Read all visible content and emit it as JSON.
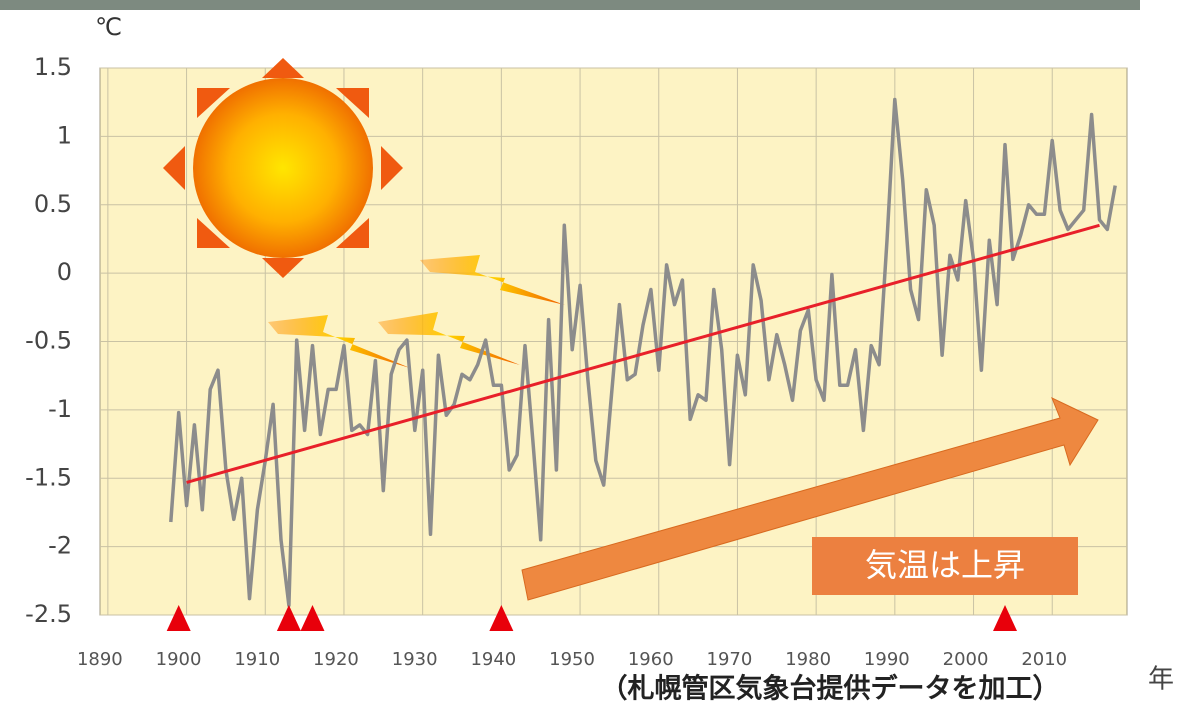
{
  "chart_data": {
    "type": "line",
    "unit": "℃",
    "x_label": "年",
    "source": "（札幌管区気象台提供データを加工）",
    "annotation": "気温は上昇",
    "xlim": [
      1889,
      2019.5
    ],
    "xticks": [
      1890,
      1900,
      1910,
      1920,
      1930,
      1940,
      1950,
      1960,
      1970,
      1980,
      1990,
      2000,
      2010
    ],
    "ylim": [
      -2.5,
      1.5
    ],
    "yticks": [
      1.5,
      1,
      0.5,
      0,
      -0.5,
      -1,
      -1.5,
      -2,
      -2.5
    ],
    "grid": true,
    "series": [
      {
        "color": "#8c8c8c",
        "x": [
          1898,
          1899,
          1900,
          1901,
          1902,
          1903,
          1904,
          1905,
          1906,
          1907,
          1908,
          1909,
          1910,
          1911,
          1912,
          1913,
          1914,
          1915,
          1916,
          1917,
          1918,
          1919,
          1920,
          1921,
          1922,
          1923,
          1924,
          1925,
          1926,
          1927,
          1928,
          1929,
          1930,
          1931,
          1932,
          1933,
          1934,
          1935,
          1936,
          1937,
          1938,
          1939,
          1940,
          1941,
          1942,
          1943,
          1944,
          1945,
          1946,
          1947,
          1948,
          1949,
          1950,
          1951,
          1952,
          1953,
          1954,
          1955,
          1956,
          1957,
          1958,
          1959,
          1960,
          1961,
          1962,
          1963,
          1964,
          1965,
          1966,
          1967,
          1968,
          1969,
          1970,
          1971,
          1972,
          1973,
          1974,
          1975,
          1976,
          1977,
          1978,
          1979,
          1980,
          1981,
          1982,
          1983,
          1984,
          1985,
          1986,
          1987,
          1988,
          1989,
          1990,
          1991,
          1992,
          1993,
          1994,
          1995,
          1996,
          1997,
          1998,
          1999,
          2000,
          2001,
          2002,
          2003,
          2004,
          2005,
          2006,
          2007,
          2008,
          2009,
          2010,
          2011,
          2012,
          2013,
          2014,
          2015,
          2016,
          2017,
          2018
        ],
        "values": [
          -1.82,
          -1.02,
          -1.7,
          -1.11,
          -1.73,
          -0.85,
          -0.71,
          -1.44,
          -1.8,
          -1.5,
          -2.38,
          -1.73,
          -1.37,
          -0.96,
          -1.95,
          -2.43,
          -0.49,
          -1.15,
          -0.53,
          -1.18,
          -0.85,
          -0.85,
          -0.53,
          -1.15,
          -1.11,
          -1.18,
          -0.64,
          -1.59,
          -0.74,
          -0.56,
          -0.49,
          -1.15,
          -0.71,
          -1.91,
          -0.6,
          -1.04,
          -0.96,
          -0.74,
          -0.78,
          -0.67,
          -0.49,
          -0.82,
          -0.82,
          -1.44,
          -1.33,
          -0.53,
          -1.22,
          -1.95,
          -0.34,
          -1.44,
          0.35,
          -0.56,
          -0.09,
          -0.78,
          -1.37,
          -1.55,
          -0.89,
          -0.23,
          -0.78,
          -0.74,
          -0.38,
          -0.12,
          -0.71,
          0.06,
          -0.23,
          -0.05,
          -1.07,
          -0.89,
          -0.93,
          -0.12,
          -0.56,
          -1.4,
          -0.6,
          -0.89,
          0.06,
          -0.2,
          -0.78,
          -0.45,
          -0.67,
          -0.93,
          -0.42,
          -0.27,
          -0.78,
          -0.93,
          -0.01,
          -0.82,
          -0.82,
          -0.56,
          -1.15,
          -0.53,
          -0.67,
          0.24,
          1.27,
          0.68,
          -0.12,
          -0.34,
          0.61,
          0.35,
          -0.6,
          0.13,
          -0.05,
          0.53,
          0.1,
          -0.71,
          0.24,
          -0.23,
          0.94,
          0.1,
          0.28,
          0.5,
          0.43,
          0.43,
          0.97,
          0.46,
          0.32,
          0.39,
          0.46,
          1.16,
          0.39,
          0.32,
          0.64
        ]
      }
    ],
    "trend": {
      "color": "#e8202a",
      "x": [
        1900,
        2016
      ],
      "values": [
        -1.53,
        0.35
      ]
    },
    "markers_x": [
      1899,
      1913,
      1916,
      1940,
      2004
    ],
    "marker_color": "#e8000b",
    "background": "#fdf3c4"
  }
}
